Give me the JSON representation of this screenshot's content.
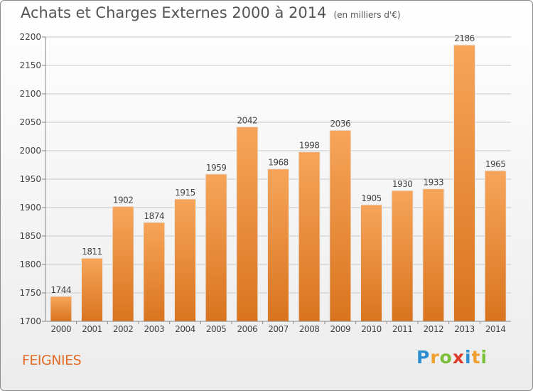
{
  "title": "Achats et Charges Externes 2000 à 2014",
  "subtitle": "(en milliers d'€)",
  "commune": "FEIGNIES",
  "logo": {
    "letters": [
      "P",
      "r",
      "o",
      "x",
      "i",
      "t",
      "i"
    ],
    "colors": [
      "#2e8fd0",
      "#f0a030",
      "#7bbf3a",
      "#e03a2a",
      "#2e8fd0",
      "#f0a030",
      "#7bbf3a"
    ]
  },
  "colors": {
    "bar_top": "#f7a55a",
    "bar_bottom": "#d9741f",
    "grid": "#c8c8c8",
    "axis_text": "#444"
  },
  "chart_data": {
    "type": "bar",
    "categories": [
      "2000",
      "2001",
      "2002",
      "2003",
      "2004",
      "2005",
      "2006",
      "2007",
      "2008",
      "2009",
      "2010",
      "2011",
      "2012",
      "2013",
      "2014"
    ],
    "values": [
      1744,
      1811,
      1902,
      1874,
      1915,
      1959,
      2042,
      1968,
      1998,
      2036,
      1905,
      1930,
      1933,
      2186,
      1965
    ],
    "ylim": [
      1700,
      2200
    ],
    "yticks": [
      1700,
      1750,
      1800,
      1850,
      1900,
      1950,
      2000,
      2050,
      2100,
      2150,
      2200
    ],
    "grid": true
  }
}
